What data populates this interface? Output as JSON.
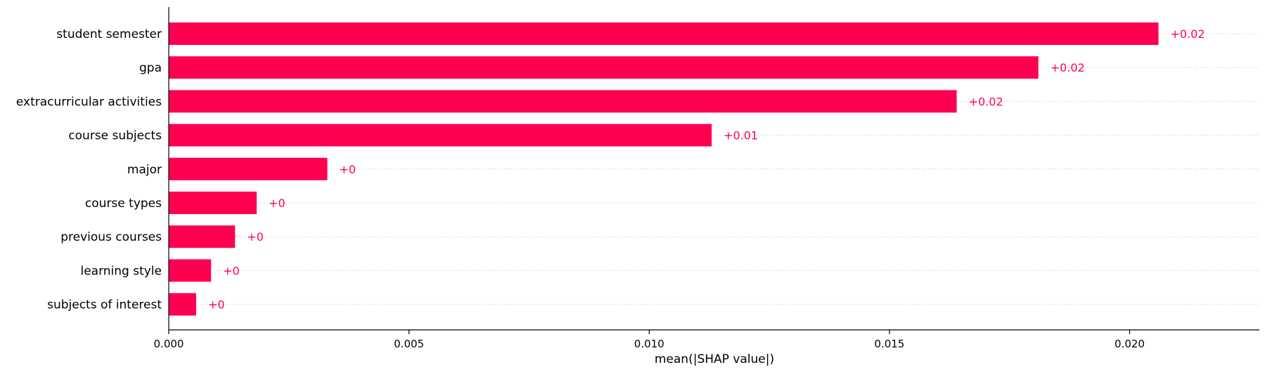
{
  "chart_data": {
    "type": "bar",
    "orientation": "horizontal",
    "categories": [
      "student semester",
      "gpa",
      "extracurricular activities",
      "course subjects",
      "major",
      "course types",
      "previous courses",
      "learning style",
      "subjects of interest"
    ],
    "values": [
      0.0206,
      0.0181,
      0.0164,
      0.0113,
      0.0033,
      0.00183,
      0.00138,
      0.00088,
      0.00057
    ],
    "value_labels": [
      "+0.02",
      "+0.02",
      "+0.02",
      "+0.01",
      "+0",
      "+0",
      "+0",
      "+0",
      "+0"
    ],
    "xlabel": "mean(|SHAP value|)",
    "ylabel": "",
    "xlim": [
      0,
      0.0227
    ],
    "xticks": [
      0,
      0.005,
      0.01,
      0.015,
      0.02
    ],
    "xtick_labels": [
      "0.000",
      "0.005",
      "0.010",
      "0.015",
      "0.020"
    ],
    "grid": "horizontal dotted lines per row",
    "bar_color": "#ff0051",
    "label_color": "#ff0051"
  }
}
